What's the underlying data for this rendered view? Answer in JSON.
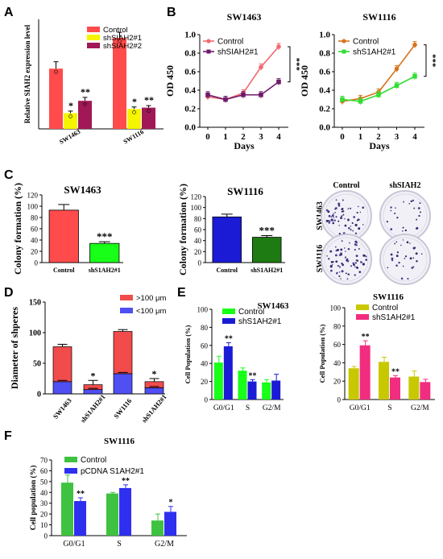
{
  "panel_letters": {
    "a": "A",
    "b": "B",
    "c": "C",
    "d": "D",
    "e": "E",
    "f": "F"
  },
  "colors": {
    "red": "#ff4b4b",
    "yellow": "#f5f500",
    "maroon": "#a01856",
    "line_red": "#f2696f",
    "line_purple": "#6f1a6a",
    "line_orange": "#d9731c",
    "line_green": "#33dd33",
    "green_bar": "#18ff18",
    "blue_bar": "#1b1bd6",
    "dkgreen_bar": "#1e7a12",
    "olive": "#c8c800",
    "pink": "#f12d80",
    "sphere_red": "#f24b4b",
    "sphere_blue": "#4f4ff2",
    "f_green": "#3fc23f",
    "f_blue": "#2f2ff0"
  },
  "chart_data": [
    {
      "id": "A",
      "type": "bar",
      "ylabel": "Relative SIAH2 expression level",
      "categories": [
        "SW1463",
        "SW1116"
      ],
      "series": [
        {
          "name": "Control",
          "values": [
            0.88,
            1.33
          ]
        },
        {
          "name": "shSIAH2#1",
          "values": [
            0.23,
            0.29
          ]
        },
        {
          "name": "shSIAH2#2",
          "values": [
            0.41,
            0.31
          ]
        }
      ],
      "errors": [
        [
          0.1,
          0.08
        ],
        [
          0.03,
          0.03
        ],
        [
          0.05,
          0.03
        ]
      ],
      "sig": [
        [
          "",
          "*",
          "**"
        ],
        [
          "",
          "*",
          "**"
        ]
      ],
      "ylim": [
        0,
        1.6
      ],
      "legend": "top-right"
    },
    {
      "id": "B1",
      "type": "line",
      "title": "SW1463",
      "xlabel": "Days",
      "ylabel": "OD 450",
      "x": [
        0,
        1,
        2,
        3,
        4
      ],
      "series": [
        {
          "name": "Control",
          "values": [
            0.33,
            0.3,
            0.37,
            0.65,
            0.87
          ]
        },
        {
          "name": "shSIAH2#1",
          "values": [
            0.35,
            0.3,
            0.35,
            0.35,
            0.49
          ]
        }
      ],
      "sig": "***",
      "ylim": [
        0,
        1.0
      ],
      "yticks": [
        "0.0",
        "0.2",
        "0.4",
        "0.6",
        "0.8",
        "1.0"
      ]
    },
    {
      "id": "B2",
      "type": "line",
      "title": "SW1116",
      "xlabel": "Days",
      "ylabel": "OD 450",
      "x": [
        0,
        1,
        2,
        3,
        4
      ],
      "series": [
        {
          "name": "Control",
          "values": [
            0.28,
            0.31,
            0.38,
            0.63,
            0.89
          ]
        },
        {
          "name": "shS1AH2#1",
          "values": [
            0.3,
            0.28,
            0.35,
            0.45,
            0.55
          ]
        }
      ],
      "sig": "***",
      "ylim": [
        0,
        1.0
      ],
      "yticks": [
        "0.0",
        "0.2",
        "0.4",
        "0.6",
        "0.8",
        "1.0"
      ]
    },
    {
      "id": "C1",
      "type": "bar",
      "title": "SW1463",
      "ylabel": "Colony formation (%)",
      "categories": [
        "Control",
        "shS1AH2#1"
      ],
      "values": [
        93,
        34
      ],
      "errors": [
        10,
        3
      ],
      "sig": [
        "",
        "***"
      ],
      "ylim": [
        0,
        120
      ],
      "yticks": [
        "0",
        "20",
        "40",
        "60",
        "80",
        "100",
        "120"
      ]
    },
    {
      "id": "C2",
      "type": "bar",
      "title": "SW1116",
      "ylabel": "Colony formation (%)",
      "categories": [
        "Control",
        "shS1AH2#1"
      ],
      "values": [
        83,
        46
      ],
      "errors": [
        5,
        3
      ],
      "sig": [
        "",
        "***"
      ],
      "ylim": [
        0,
        120
      ],
      "yticks": [
        "0",
        "20",
        "40",
        "60",
        "80",
        "100",
        "120"
      ]
    },
    {
      "id": "D",
      "type": "bar",
      "ylabel": "Diameter of shperes",
      "categories": [
        "SW1463",
        "shS1AH2#1",
        "SW1116",
        "shS1AH2#1"
      ],
      "series": [
        {
          "name": "<100 μm",
          "values": [
            20,
            7,
            33,
            10
          ]
        },
        {
          "name": ">100 μm",
          "values": [
            57,
            8,
            69,
            10
          ]
        }
      ],
      "errors": [
        4,
        7,
        3,
        5
      ],
      "sig": [
        "",
        "*",
        "",
        "*"
      ],
      "ylim": [
        0,
        150
      ],
      "yticks": [
        "0",
        "50",
        "100",
        "150"
      ],
      "legend": "top-right"
    },
    {
      "id": "E1",
      "type": "bar",
      "title": "SW1463",
      "ylabel": "Cell Population (%)",
      "categories": [
        "G0/G1",
        "S",
        "G2/M"
      ],
      "series": [
        {
          "name": "Control",
          "values": [
            41,
            32,
            19
          ]
        },
        {
          "name": "shS1AH2#1",
          "values": [
            59,
            20,
            21
          ]
        }
      ],
      "errors": [
        [
          7,
          3,
          3
        ],
        [
          4,
          2,
          7
        ]
      ],
      "sig": [
        [
          "",
          "**"
        ],
        [
          "",
          "**"
        ],
        [
          "",
          ""
        ]
      ],
      "ylim": [
        0,
        100
      ],
      "yticks": [
        "0",
        "20",
        "40",
        "60",
        "80",
        "100"
      ],
      "legend": "top-right"
    },
    {
      "id": "E2",
      "type": "bar",
      "title": "SW1116",
      "ylabel": "Cell Population (%)",
      "categories": [
        "G0/G1",
        "S",
        "G2/M"
      ],
      "series": [
        {
          "name": "Control",
          "values": [
            34,
            41,
            25
          ]
        },
        {
          "name": "shS1AH2#1",
          "values": [
            59,
            24,
            19
          ]
        }
      ],
      "errors": [
        [
          2,
          5,
          6
        ],
        [
          5,
          2,
          3
        ]
      ],
      "sig": [
        [
          "",
          "**"
        ],
        [
          "",
          "**"
        ],
        [
          "",
          ""
        ]
      ],
      "ylim": [
        0,
        100
      ],
      "yticks": [
        "0",
        "20",
        "40",
        "60",
        "80",
        "100"
      ],
      "legend": "top-right"
    },
    {
      "id": "F",
      "type": "bar",
      "title": "SW1116",
      "ylabel": "Cell population (%)",
      "categories": [
        "G0/G1",
        "S",
        "G2/M"
      ],
      "series": [
        {
          "name": "Control",
          "values": [
            49,
            39,
            14
          ]
        },
        {
          "name": "pCDNA S1AH2#1",
          "values": [
            32,
            44,
            22
          ]
        }
      ],
      "errors": [
        [
          7,
          1,
          6
        ],
        [
          3,
          3,
          5
        ]
      ],
      "sig": [
        [
          "",
          "**"
        ],
        [
          "",
          "**"
        ],
        [
          "",
          "*"
        ]
      ],
      "ylim": [
        0,
        70
      ],
      "yticks": [
        "0",
        "10",
        "20",
        "30",
        "40",
        "50",
        "60",
        "70"
      ],
      "legend": "top-left"
    }
  ],
  "plates": {
    "col_labels": [
      "Control",
      "shSIAH2"
    ],
    "row_labels": [
      "SW1463",
      "SW1116"
    ]
  }
}
